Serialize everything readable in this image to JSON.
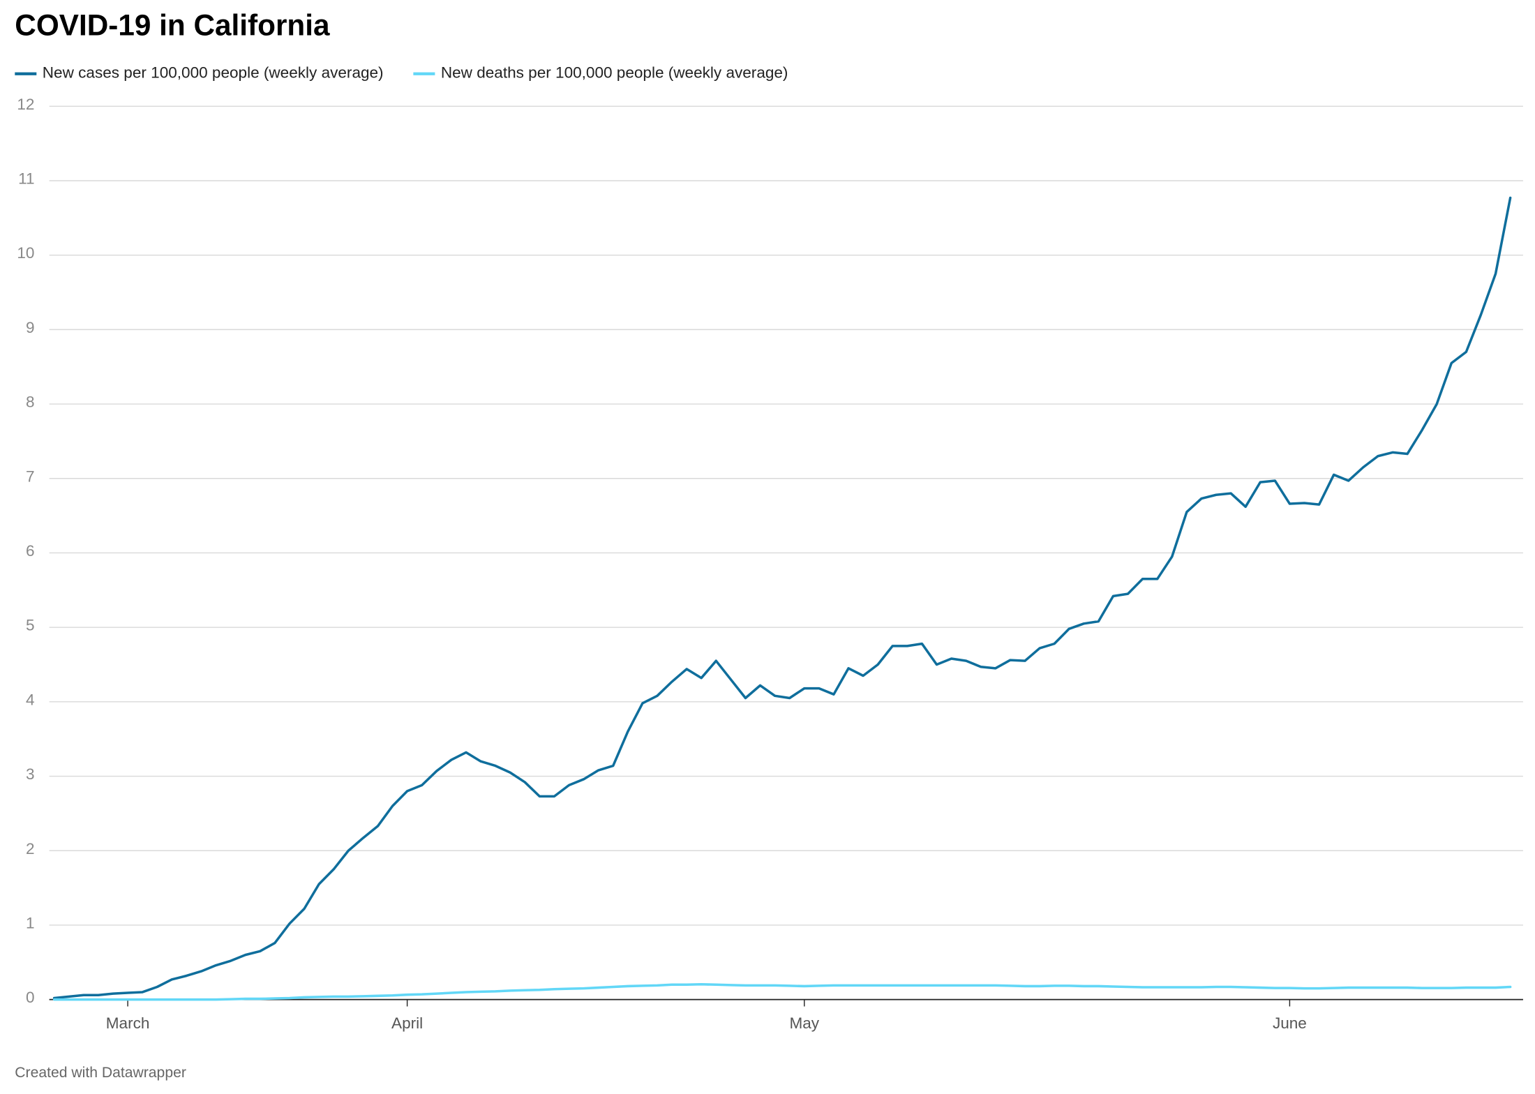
{
  "chart_data": {
    "type": "line",
    "title": "COVID-19 in California",
    "footer": "Created with Datawrapper",
    "categories": [
      null,
      null,
      null,
      null,
      null,
      "March",
      null,
      null,
      null,
      null,
      null,
      null,
      null,
      null,
      null,
      null,
      null,
      null,
      null,
      null,
      null,
      null,
      null,
      null,
      "April",
      null,
      null,
      null,
      null,
      null,
      null,
      null,
      null,
      null,
      null,
      null,
      null,
      null,
      null,
      null,
      null,
      null,
      null,
      null,
      null,
      null,
      null,
      null,
      null,
      null,
      null,
      "May",
      null,
      null,
      null,
      null,
      null,
      null,
      null,
      null,
      null,
      null,
      null,
      null,
      null,
      null,
      null,
      null,
      null,
      null,
      null,
      null,
      null,
      null,
      null,
      null,
      null,
      null,
      null,
      null,
      null,
      null,
      null,
      null,
      "June",
      null,
      null,
      null,
      null,
      null,
      null,
      null,
      null,
      null,
      null,
      null,
      null,
      null,
      null,
      null
    ],
    "series": [
      {
        "name": "New cases per 100,000 people (weekly average)",
        "color": "#0f6e9c",
        "values": [
          0.02,
          0.04,
          0.06,
          0.06,
          0.08,
          0.09,
          0.1,
          0.17,
          0.27,
          0.32,
          0.38,
          0.46,
          0.52,
          0.6,
          0.65,
          0.76,
          1.02,
          1.22,
          1.55,
          1.75,
          2.0,
          2.17,
          2.33,
          2.6,
          2.8,
          2.88,
          3.07,
          3.22,
          3.32,
          3.2,
          3.14,
          3.05,
          2.92,
          2.73,
          2.73,
          2.88,
          2.96,
          3.08,
          3.14,
          3.6,
          3.98,
          4.08,
          4.27,
          4.44,
          4.32,
          4.55,
          4.3,
          4.05,
          4.22,
          4.08,
          4.05,
          4.18,
          4.18,
          4.1,
          4.45,
          4.35,
          4.5,
          4.75,
          4.75,
          4.78,
          4.5,
          4.58,
          4.55,
          4.47,
          4.45,
          4.56,
          4.55,
          4.72,
          4.78,
          4.98,
          5.05,
          5.08,
          5.42,
          5.45,
          5.65,
          5.65,
          5.95,
          6.55,
          6.73,
          6.78,
          6.8,
          6.62,
          6.95,
          6.97,
          6.66,
          6.67,
          6.65,
          7.05,
          6.97,
          7.15,
          7.3,
          7.35,
          7.33,
          7.65,
          8.0,
          8.55,
          8.7,
          9.2,
          9.75,
          10.77
        ]
      },
      {
        "name": "New deaths per 100,000 people (weekly average)",
        "color": "#62d7f7",
        "values": [
          0,
          0,
          0,
          0,
          0,
          0,
          0,
          0,
          0,
          0,
          0,
          0,
          0.005,
          0.01,
          0.01,
          0.015,
          0.02,
          0.03,
          0.035,
          0.04,
          0.04,
          0.045,
          0.05,
          0.055,
          0.065,
          0.07,
          0.08,
          0.09,
          0.1,
          0.105,
          0.11,
          0.12,
          0.125,
          0.13,
          0.14,
          0.145,
          0.15,
          0.16,
          0.17,
          0.18,
          0.185,
          0.19,
          0.2,
          0.2,
          0.205,
          0.2,
          0.195,
          0.19,
          0.19,
          0.19,
          0.185,
          0.18,
          0.185,
          0.19,
          0.19,
          0.19,
          0.19,
          0.19,
          0.19,
          0.19,
          0.19,
          0.19,
          0.19,
          0.19,
          0.19,
          0.185,
          0.18,
          0.18,
          0.185,
          0.185,
          0.18,
          0.18,
          0.175,
          0.17,
          0.165,
          0.165,
          0.165,
          0.165,
          0.165,
          0.17,
          0.17,
          0.165,
          0.16,
          0.155,
          0.155,
          0.15,
          0.15,
          0.155,
          0.16,
          0.16,
          0.16,
          0.16,
          0.16,
          0.155,
          0.155,
          0.155,
          0.16,
          0.16,
          0.16,
          0.17
        ]
      }
    ],
    "ylim": [
      0,
      12
    ],
    "yticks": [
      0,
      1,
      2,
      3,
      4,
      5,
      6,
      7,
      8,
      9,
      10,
      11,
      12
    ],
    "grid": true
  }
}
